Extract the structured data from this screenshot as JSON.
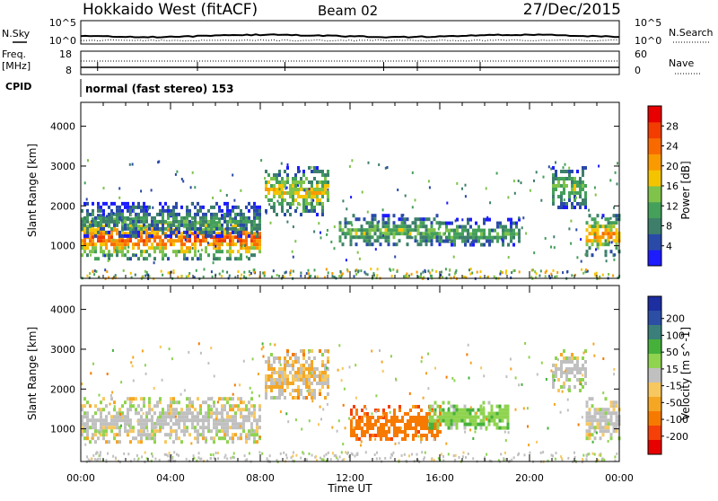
{
  "header": {
    "station": "Hokkaido West (fitACF)",
    "beam": "Beam 02",
    "date": "27/Dec/2015"
  },
  "noise_panel": {
    "left_label": "N.Sky",
    "right_label": "N.Search",
    "left_ticks": [
      "10^5",
      "10^0"
    ],
    "right_ticks": [
      "10^5",
      "10^0"
    ]
  },
  "freq_panel": {
    "left_label_1": "Freq.",
    "left_label_2": "[MHz]",
    "left_ticks": [
      "18",
      "8"
    ],
    "right_label": "Nave",
    "right_ticks": [
      "60",
      "0"
    ]
  },
  "cpid_label": "CPID",
  "mode_text": "normal (fast stereo) 153",
  "colors": {
    "power": [
      "#1c1cff",
      "#2a4aa8",
      "#3d7f6a",
      "#44a05a",
      "#7fc34a",
      "#f5c400",
      "#f99a00",
      "#f86a00",
      "#f23c00",
      "#e80000"
    ],
    "velocity": [
      "#e60000",
      "#f5400a",
      "#f77a00",
      "#f5a623",
      "#f7c860",
      "#c0c0c0",
      "#8fd34f",
      "#45b13b",
      "#3a7f7a",
      "#2c4ea5",
      "#1c2ea0"
    ]
  },
  "chart_data": [
    {
      "type": "heatmap",
      "panel": "power",
      "xlabel": "",
      "ylabel": "Slant Range [km]",
      "xlim": [
        "00:00",
        "24:00"
      ],
      "ylim": [
        180,
        4600
      ],
      "y_ticks": [
        1000,
        2000,
        3000,
        4000
      ],
      "x_ticks": [
        "00:00",
        "04:00",
        "08:00",
        "12:00",
        "16:00",
        "20:00",
        "00:00"
      ],
      "colorbar": {
        "label": "Power [dB]",
        "range": [
          0,
          32
        ],
        "ticks": [
          4,
          8,
          12,
          16,
          20,
          24,
          28
        ]
      },
      "echo_regions": [
        {
          "t_start": 0.0,
          "t_end": 8.0,
          "range_start": 650,
          "range_end": 1800,
          "peak_db": 26
        },
        {
          "t_start": 0.0,
          "t_end": 8.0,
          "range_start": 1200,
          "range_end": 2100,
          "peak_db": 10
        },
        {
          "t_start": 8.2,
          "t_end": 11.0,
          "range_start": 1800,
          "range_end": 3000,
          "peak_db": 18
        },
        {
          "t_start": 11.5,
          "t_end": 16.0,
          "range_start": 1000,
          "range_end": 1800,
          "peak_db": 14
        },
        {
          "t_start": 16.0,
          "t_end": 19.5,
          "range_start": 1000,
          "range_end": 1700,
          "peak_db": 12
        },
        {
          "t_start": 21.0,
          "t_end": 22.5,
          "range_start": 2000,
          "range_end": 3000,
          "peak_db": 14
        },
        {
          "t_start": 22.5,
          "t_end": 24.0,
          "range_start": 800,
          "range_end": 1800,
          "peak_db": 22
        }
      ]
    },
    {
      "type": "heatmap",
      "panel": "velocity",
      "xlabel": "Time UT",
      "ylabel": "Slant Range [km]",
      "xlim": [
        "00:00",
        "24:00"
      ],
      "ylim": [
        180,
        4600
      ],
      "y_ticks": [
        1000,
        2000,
        3000,
        4000
      ],
      "x_ticks": [
        "00:00",
        "04:00",
        "08:00",
        "12:00",
        "16:00",
        "20:00",
        "00:00"
      ],
      "colorbar": {
        "label": "Velocity [m s^-1]",
        "ticks": [
          200,
          100,
          50,
          15,
          -15,
          -50,
          -100,
          -200
        ],
        "tick_labels": [
          "200",
          "100",
          "50",
          "15",
          "-15",
          "-50",
          "-100",
          "-200"
        ]
      },
      "echo_regions": [
        {
          "t_start": 0.0,
          "t_end": 8.0,
          "range_start": 650,
          "range_end": 1800,
          "velocity": 0
        },
        {
          "t_start": 8.2,
          "t_end": 11.0,
          "range_start": 1800,
          "range_end": 3000,
          "velocity": -20
        },
        {
          "t_start": 12.0,
          "t_end": 16.0,
          "range_start": 700,
          "range_end": 1600,
          "velocity": -80
        },
        {
          "t_start": 15.5,
          "t_end": 19.0,
          "range_start": 1000,
          "range_end": 1700,
          "velocity": 40
        },
        {
          "t_start": 21.0,
          "t_end": 22.5,
          "range_start": 2000,
          "range_end": 3000,
          "velocity": 0
        },
        {
          "t_start": 22.5,
          "t_end": 24.0,
          "range_start": 800,
          "range_end": 1800,
          "velocity": 0
        }
      ]
    }
  ]
}
